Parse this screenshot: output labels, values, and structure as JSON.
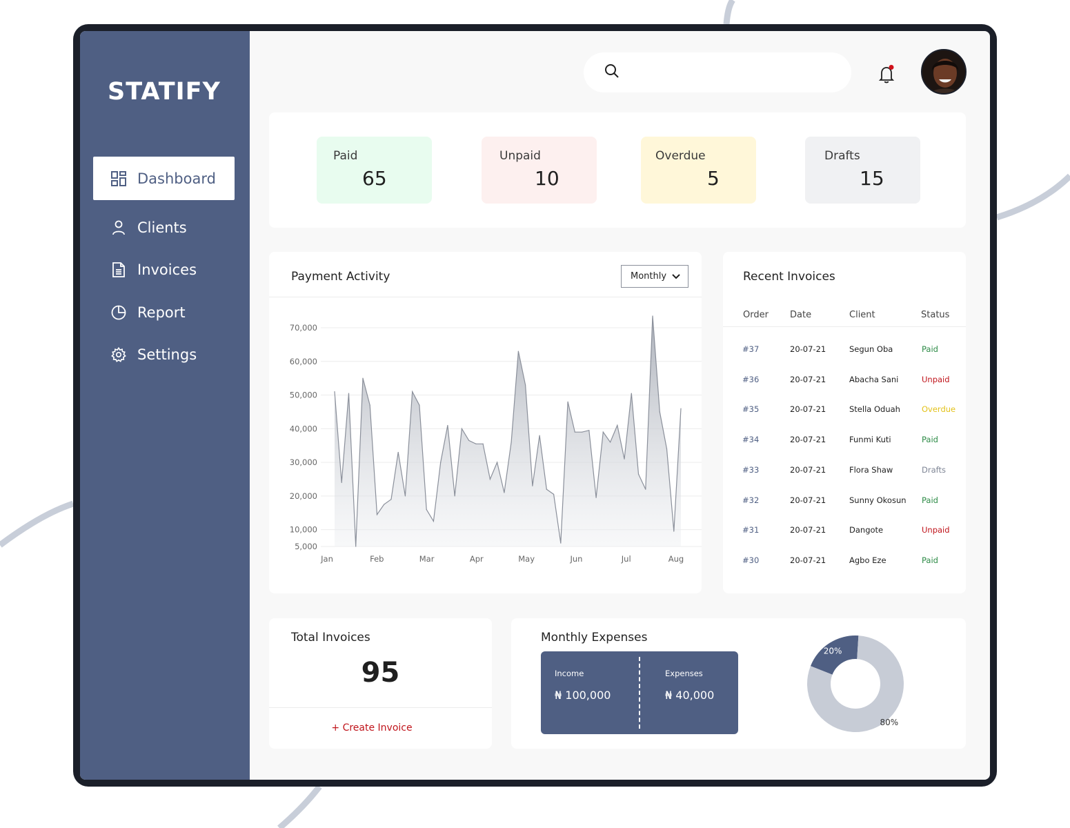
{
  "app": {
    "logo": "STATIFY"
  },
  "sidebar": {
    "items": [
      {
        "label": "Dashboard",
        "icon": "grid-icon",
        "active": true
      },
      {
        "label": "Clients",
        "icon": "user-icon",
        "active": false
      },
      {
        "label": "Invoices",
        "icon": "document-icon",
        "active": false
      },
      {
        "label": "Report",
        "icon": "pie-chart-icon",
        "active": false
      },
      {
        "label": "Settings",
        "icon": "gear-icon",
        "active": false
      }
    ]
  },
  "header": {
    "search": {
      "placeholder": ""
    },
    "notification_dot": true
  },
  "stats": [
    {
      "label": "Paid",
      "value": "65",
      "color": "#e8fcef"
    },
    {
      "label": "Unpaid",
      "value": "10",
      "color": "#fdf0ef"
    },
    {
      "label": "Overdue",
      "value": "5",
      "color": "#fff7d9"
    },
    {
      "label": "Drafts",
      "value": "15",
      "color": "#f0f1f3"
    }
  ],
  "payment_activity": {
    "title": "Payment Activity",
    "period": "Monthly"
  },
  "chart_data": {
    "type": "area",
    "title": "Payment Activity",
    "x_tick_labels": [
      "Jan",
      "Feb",
      "Mar",
      "Apr",
      "May",
      "Jun",
      "Jul",
      "Aug"
    ],
    "y_tick_labels": [
      "5,000",
      "10,000",
      "20,000",
      "30,000",
      "40,000",
      "50,000",
      "60,000",
      "70,000"
    ],
    "ylim": [
      5000,
      70000
    ],
    "grid": true,
    "series": [
      {
        "values": [
          51000,
          24000,
          50500,
          5000,
          55000,
          47000,
          14500,
          17500,
          19000,
          33000,
          20000,
          51000,
          47000,
          16000,
          12500,
          30000,
          41000,
          20000,
          40000,
          36500,
          35500,
          35500,
          25000,
          30000,
          21000,
          36000,
          63000,
          53000,
          23000,
          38000,
          22000,
          20500,
          6000,
          48000,
          39000,
          39000,
          39500,
          19500,
          39000,
          36000,
          41000,
          31000,
          50500,
          26500,
          22000,
          73500,
          45000,
          34000,
          9500,
          46000
        ],
        "color": "#8a8f9a"
      }
    ]
  },
  "recent_invoices": {
    "title": "Recent Invoices",
    "columns": [
      "Order",
      "Date",
      "Client",
      "Status"
    ],
    "rows": [
      {
        "order": "#37",
        "date": "20-07-21",
        "client": "Segun Oba",
        "status": "Paid"
      },
      {
        "order": "#36",
        "date": "20-07-21",
        "client": "Abacha Sani",
        "status": "Unpaid"
      },
      {
        "order": "#35",
        "date": "20-07-21",
        "client": "Stella Oduah",
        "status": "Overdue"
      },
      {
        "order": "#34",
        "date": "20-07-21",
        "client": "Funmi Kuti",
        "status": "Paid"
      },
      {
        "order": "#33",
        "date": "20-07-21",
        "client": "Flora Shaw",
        "status": "Drafts"
      },
      {
        "order": "#32",
        "date": "20-07-21",
        "client": "Sunny Okosun",
        "status": "Paid"
      },
      {
        "order": "#31",
        "date": "20-07-21",
        "client": "Dangote",
        "status": "Unpaid"
      },
      {
        "order": "#30",
        "date": "20-07-21",
        "client": "Agbo Eze",
        "status": "Paid"
      }
    ],
    "status_colors": {
      "Paid": "#2e8b47",
      "Unpaid": "#c0141b",
      "Overdue": "#e3c21b",
      "Drafts": "#7d8494"
    },
    "order_color": "#4f5f83"
  },
  "total_invoices": {
    "title": "Total Invoices",
    "value": "95",
    "action": "+ Create Invoice"
  },
  "monthly_expenses": {
    "title": "Monthly Expenses",
    "income_label": "Income",
    "income_value": "₦ 100,000",
    "expenses_label": "Expenses",
    "expenses_value": "₦ 40,000",
    "donut": [
      {
        "label": "20%",
        "value": 20,
        "color": "#4f5f83"
      },
      {
        "label": "80%",
        "value": 80,
        "color": "#c7ccd6"
      }
    ]
  }
}
